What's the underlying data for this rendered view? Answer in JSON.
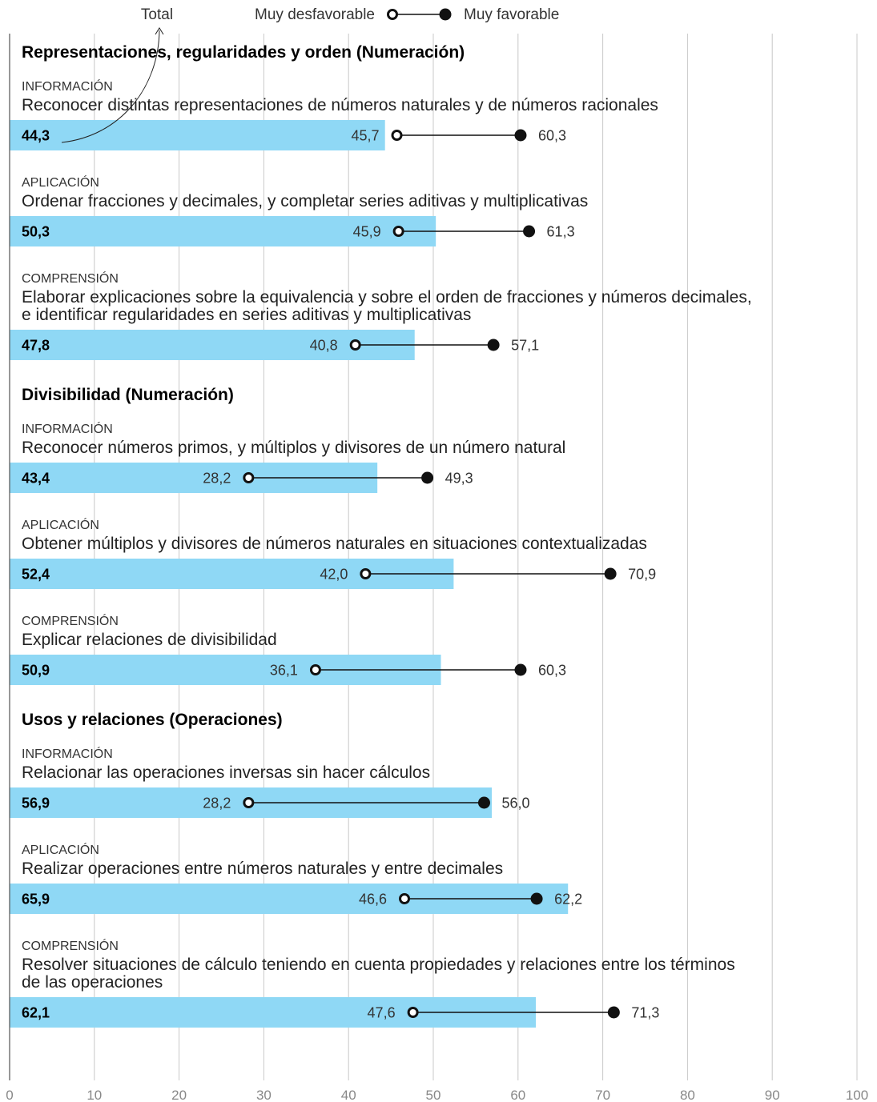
{
  "legend": {
    "total": "Total",
    "low": "Muy desfavorable",
    "high": "Muy favorable"
  },
  "colors": {
    "bar": "#8fd8f5",
    "dot": "#111111"
  },
  "chart_data": {
    "type": "bar",
    "orientation": "horizontal",
    "xlim": [
      0,
      100
    ],
    "x_ticks": [
      0,
      10,
      20,
      30,
      40,
      50,
      60,
      70,
      80,
      90,
      100
    ],
    "grid": true,
    "legend_position": "top",
    "sections": [
      {
        "title": "Representaciones, regularidades y orden (Numeración)",
        "rows": [
          {
            "level": "INFORMACIÓN",
            "desc": [
              "Reconocer distintas representaciones de números naturales y de números racionales"
            ],
            "total": 44.3,
            "total_label": "44,3",
            "low": 45.7,
            "low_label": "45,7",
            "high": 60.3,
            "high_label": "60,3"
          },
          {
            "level": "APLICACIÓN",
            "desc": [
              "Ordenar fracciones y decimales, y completar series aditivas y multiplicativas"
            ],
            "total": 50.3,
            "total_label": "50,3",
            "low": 45.9,
            "low_label": "45,9",
            "high": 61.3,
            "high_label": "61,3"
          },
          {
            "level": "COMPRENSIÓN",
            "desc": [
              "Elaborar explicaciones sobre la equivalencia y sobre el orden de fracciones y números decimales,",
              "e identificar regularidades en series aditivas y multiplicativas"
            ],
            "total": 47.8,
            "total_label": "47,8",
            "low": 40.8,
            "low_label": "40,8",
            "high": 57.1,
            "high_label": "57,1"
          }
        ]
      },
      {
        "title": "Divisibilidad (Numeración)",
        "rows": [
          {
            "level": "INFORMACIÓN",
            "desc": [
              "Reconocer números primos, y múltiplos y divisores de un número natural"
            ],
            "total": 43.4,
            "total_label": "43,4",
            "low": 28.2,
            "low_label": "28,2",
            "high": 49.3,
            "high_label": "49,3"
          },
          {
            "level": "APLICACIÓN",
            "desc": [
              "Obtener múltiplos y divisores de números naturales en situaciones contextualizadas"
            ],
            "total": 52.4,
            "total_label": "52,4",
            "low": 42.0,
            "low_label": "42,0",
            "high": 70.9,
            "high_label": "70,9"
          },
          {
            "level": "COMPRENSIÓN",
            "desc": [
              "Explicar relaciones de divisibilidad"
            ],
            "total": 50.9,
            "total_label": "50,9",
            "low": 36.1,
            "low_label": "36,1",
            "high": 60.3,
            "high_label": "60,3"
          }
        ]
      },
      {
        "title": "Usos y relaciones (Operaciones)",
        "rows": [
          {
            "level": "INFORMACIÓN",
            "desc": [
              "Relacionar las operaciones inversas sin hacer cálculos"
            ],
            "total": 56.9,
            "total_label": "56,9",
            "low": 28.2,
            "low_label": "28,2",
            "high": 56.0,
            "high_label": "56,0"
          },
          {
            "level": "APLICACIÓN",
            "desc": [
              "Realizar operaciones entre números naturales y entre decimales"
            ],
            "total": 65.9,
            "total_label": "65,9",
            "low": 46.6,
            "low_label": "46,6",
            "high": 62.2,
            "high_label": "62,2"
          },
          {
            "level": "COMPRENSIÓN",
            "desc": [
              "Resolver situaciones de cálculo teniendo en cuenta propiedades y relaciones entre los términos",
              "de las operaciones"
            ],
            "total": 62.1,
            "total_label": "62,1",
            "low": 47.6,
            "low_label": "47,6",
            "high": 71.3,
            "high_label": "71,3"
          }
        ]
      }
    ]
  }
}
